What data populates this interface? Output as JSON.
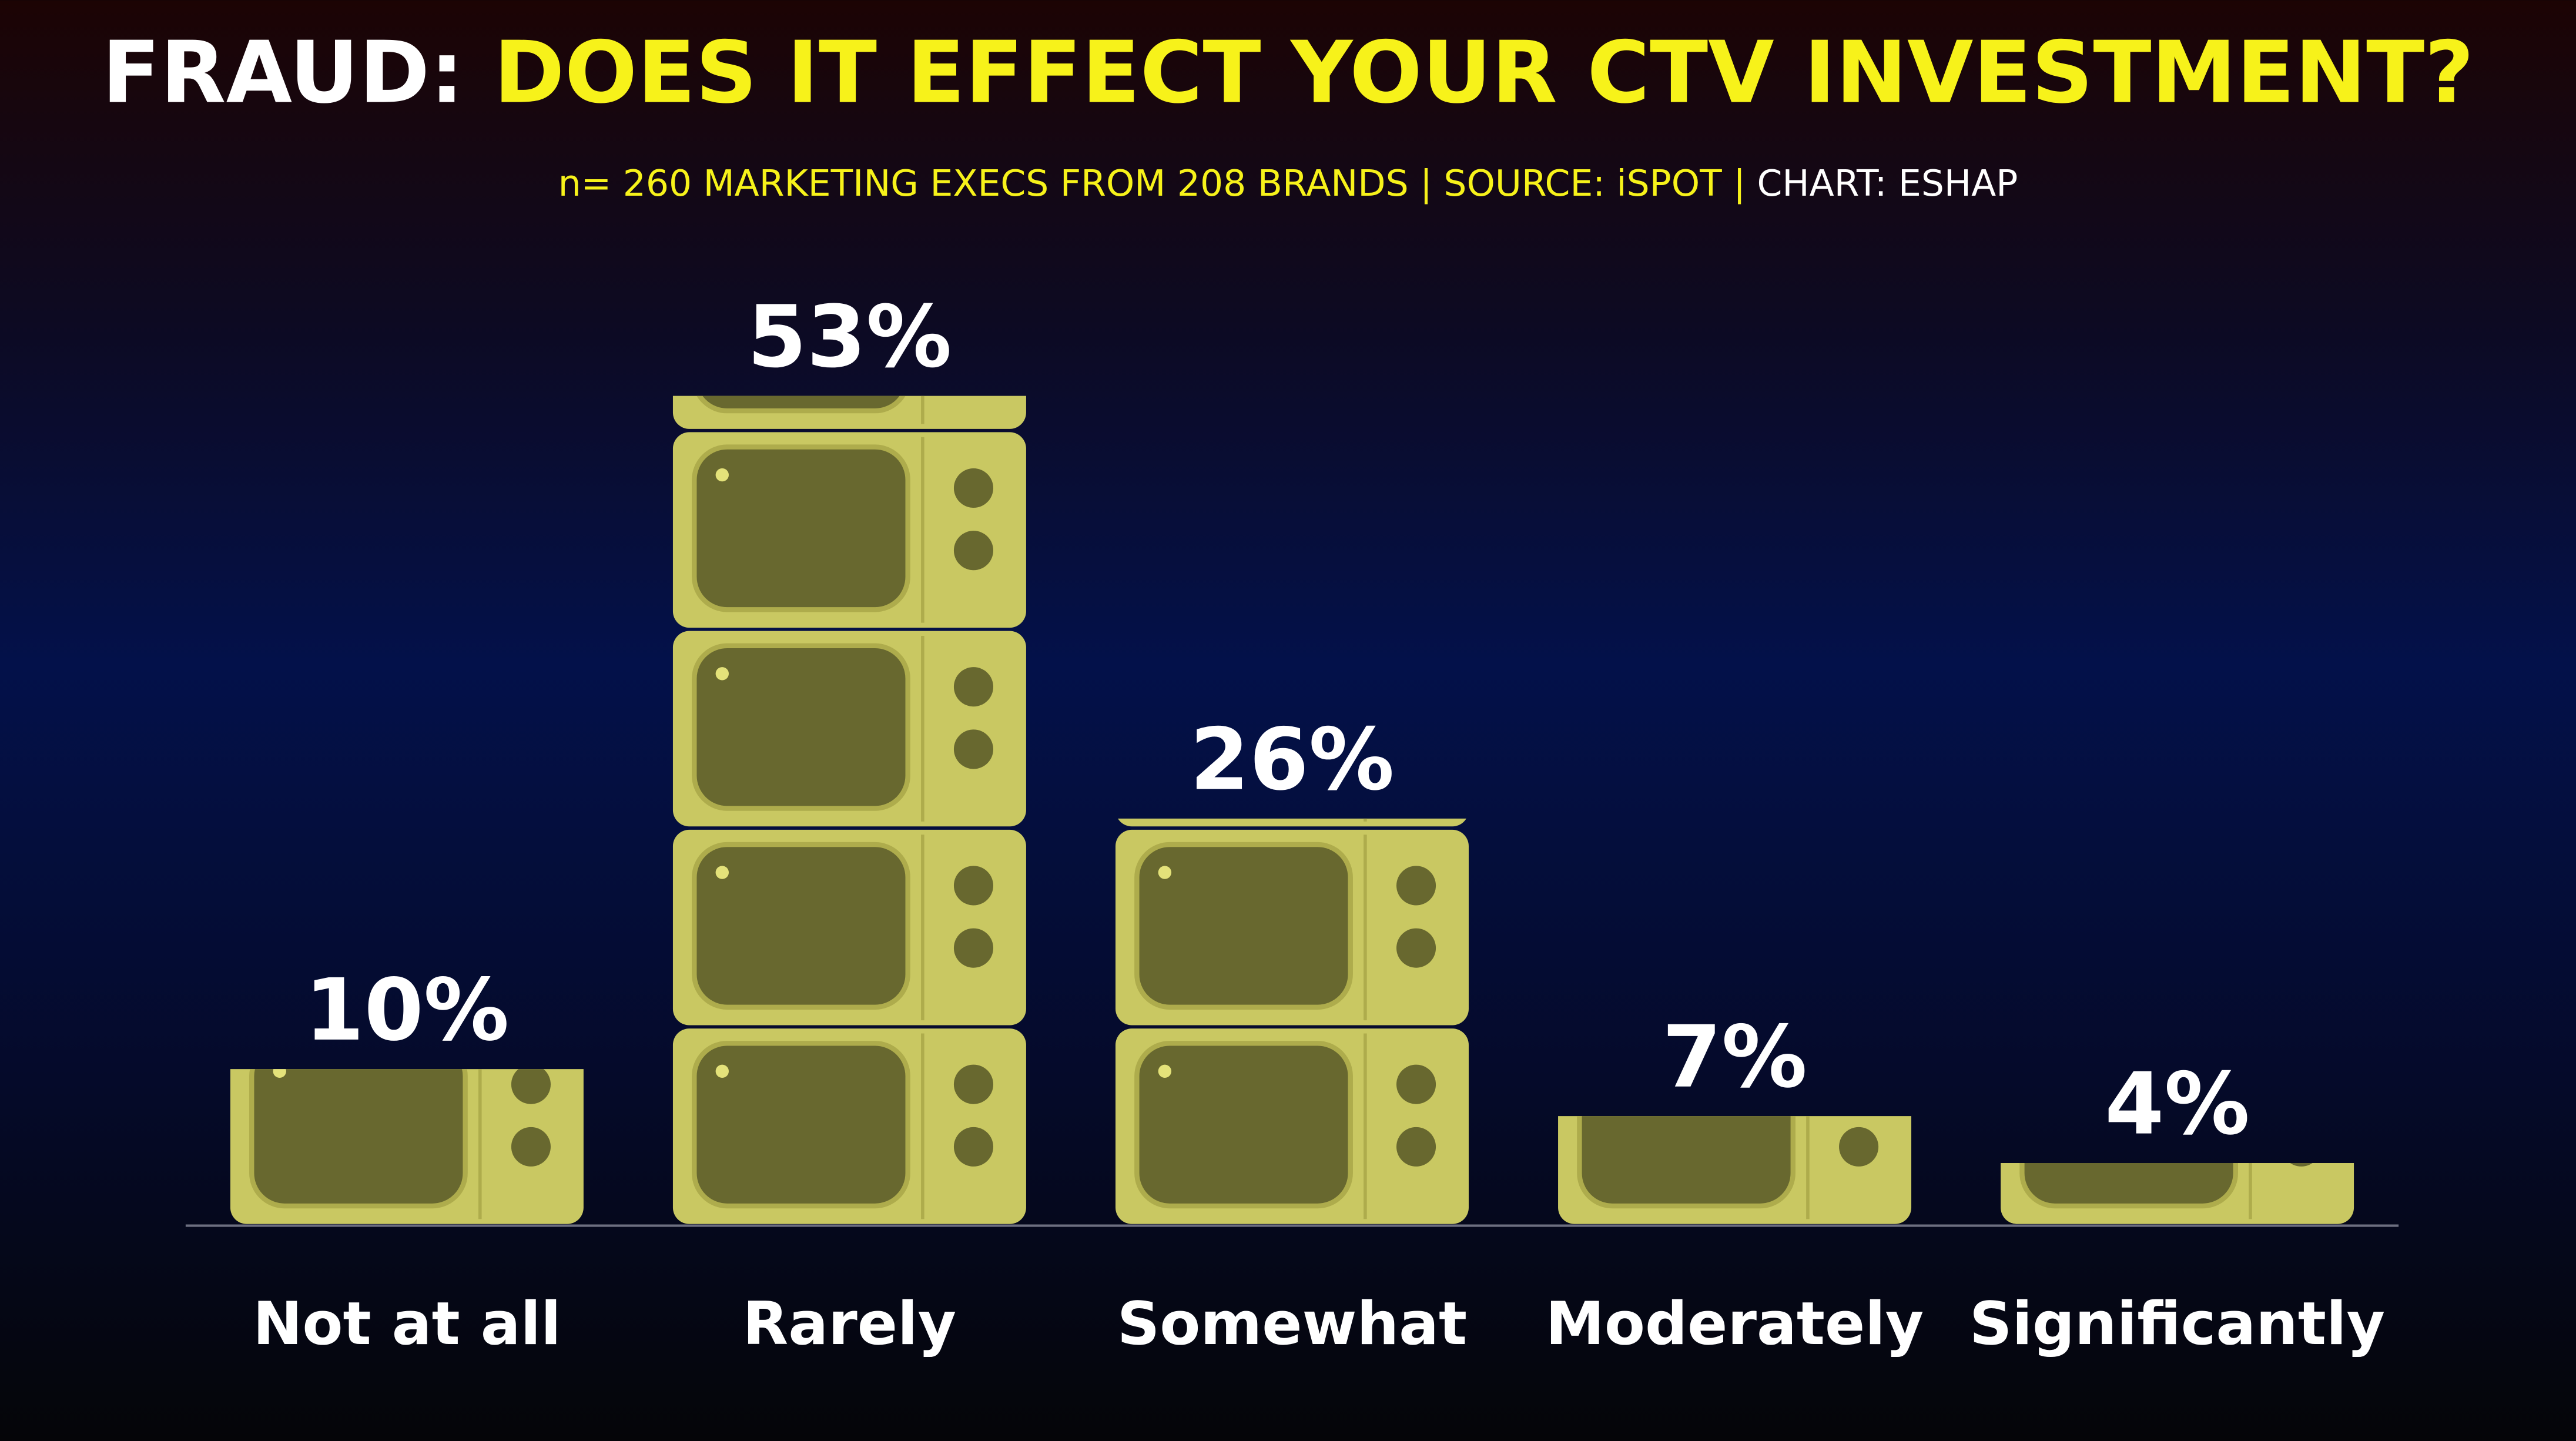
{
  "chart_data": {
    "type": "pictogram-bar",
    "title": [
      "FRAUD:",
      "DOES IT EFFECT YOUR CTV INVESTMENT?"
    ],
    "subtitle": [
      "n= 260 MARKETING EXECS FROM 208 BRANDS | SOURCE: iSPOT |",
      "CHART: ESHAP"
    ],
    "categories": [
      "Not at all",
      "Rarely",
      "Somewhat",
      "Moderately",
      "Significantly"
    ],
    "values": [
      10,
      53,
      26,
      7,
      4
    ],
    "value_labels": [
      "10%",
      "53%",
      "26%",
      "7%",
      "4%"
    ],
    "color": "#c9c862"
  }
}
